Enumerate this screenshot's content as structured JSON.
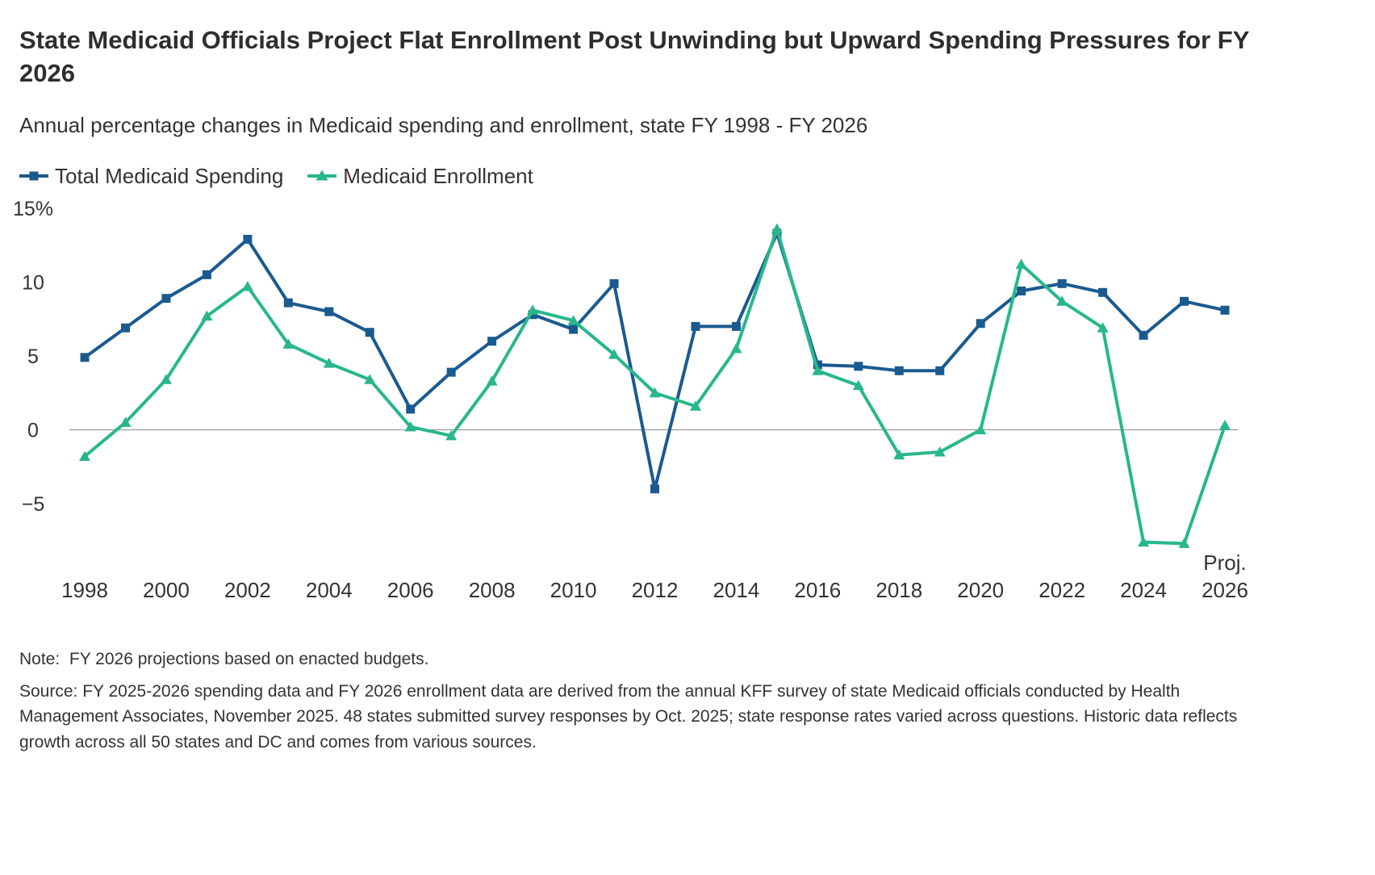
{
  "header": {
    "title": "State Medicaid Officials Project Flat Enrollment Post Unwinding but Upward Spending Pressures for FY 2026",
    "subtitle": "Annual percentage changes in Medicaid spending and enrollment, state FY 1998 - FY 2026"
  },
  "chart_data": {
    "type": "line",
    "title": "State Medicaid Officials Project Flat Enrollment Post Unwinding but Upward Spending Pressures for FY 2026",
    "subtitle": "Annual percentage changes in Medicaid spending and enrollment, state FY 1998 - FY 2026",
    "x": [
      1998,
      1999,
      2000,
      2001,
      2002,
      2003,
      2004,
      2005,
      2006,
      2007,
      2008,
      2009,
      2010,
      2011,
      2012,
      2013,
      2014,
      2015,
      2016,
      2017,
      2018,
      2019,
      2020,
      2021,
      2022,
      2023,
      2024,
      2025,
      2026
    ],
    "series": [
      {
        "name": "Total Medicaid Spending",
        "color": "#1a5a8f",
        "marker": "square",
        "values": [
          4.9,
          6.9,
          8.9,
          10.5,
          12.9,
          8.6,
          8.0,
          6.6,
          1.4,
          3.9,
          6.0,
          7.8,
          6.8,
          9.9,
          -4.0,
          7.0,
          7.0,
          13.3,
          4.4,
          4.3,
          4.0,
          4.0,
          7.2,
          9.4,
          9.9,
          9.3,
          6.4,
          8.7,
          8.1
        ]
      },
      {
        "name": "Medicaid Enrollment",
        "color": "#28b78c",
        "marker": "triangle",
        "values": [
          -1.8,
          0.5,
          3.4,
          7.7,
          9.7,
          5.8,
          4.5,
          3.4,
          0.2,
          -0.4,
          3.3,
          8.1,
          7.4,
          5.1,
          2.5,
          1.6,
          5.5,
          13.6,
          4.0,
          3.0,
          -1.7,
          -1.5,
          0.0,
          11.2,
          8.7,
          6.9,
          -7.6,
          -7.7,
          0.3
        ]
      }
    ],
    "ylim": [
      -9.8,
      15
    ],
    "yticks": [
      {
        "value": 15,
        "label": "15%"
      },
      {
        "value": 10,
        "label": "10"
      },
      {
        "value": 5,
        "label": "5"
      },
      {
        "value": 0,
        "label": "0"
      },
      {
        "value": -5,
        "label": "−5"
      }
    ],
    "xtick_years": [
      1998,
      2000,
      2002,
      2004,
      2006,
      2008,
      2010,
      2012,
      2014,
      2016,
      2018,
      2020,
      2022,
      2024,
      2026
    ],
    "final_year_prefix": "Proj.",
    "grid": "zero-line-only",
    "legend_position": "top-left",
    "axis_text_color": "#333333",
    "zero_line_color": "#8c8c8c"
  },
  "footer": {
    "note": "Note:  FY 2026 projections based on enacted budgets.",
    "source": "Source: FY 2025-2026 spending data and FY 2026 enrollment data are derived from the annual KFF survey of state Medicaid officials conducted by Health Management Associates, November 2025. 48 states submitted survey responses by Oct. 2025; state response rates varied across questions. Historic data reflects growth across all 50 states and DC and comes from various sources."
  }
}
